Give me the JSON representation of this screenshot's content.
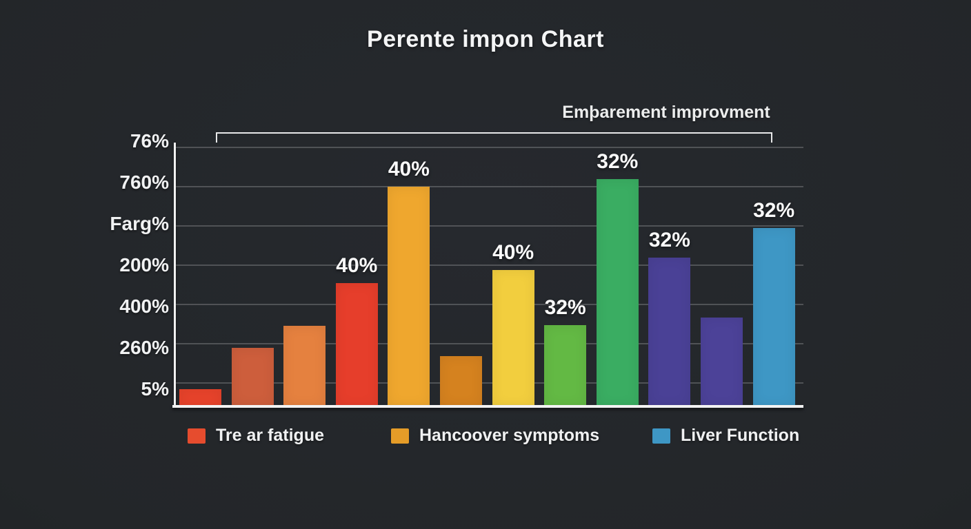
{
  "chart_data": {
    "type": "bar",
    "title": "Perente impon Chart",
    "annotation": "Emþarement improvment",
    "y_tick_labels": [
      "76%",
      "760%",
      "Farg%",
      "200%",
      "400%",
      "260%",
      "5%"
    ],
    "x_tick_labels": [],
    "grid": true,
    "legend_position": "bottom",
    "background_color": "#232629",
    "axis_color": "#f1f1f1",
    "bars": [
      {
        "height_pct": 6.6,
        "color": "#e8432b",
        "value_label": ""
      },
      {
        "height_pct": 22.4,
        "color": "#cd5e3c",
        "value_label": ""
      },
      {
        "height_pct": 30.8,
        "color": "#e5813f",
        "value_label": ""
      },
      {
        "height_pct": 47.1,
        "color": "#e63e2b",
        "value_label": "40%"
      },
      {
        "height_pct": 83.9,
        "color": "#efa72e",
        "value_label": "40%"
      },
      {
        "height_pct": 19.2,
        "color": "#d5821f",
        "value_label": ""
      },
      {
        "height_pct": 52.1,
        "color": "#f2ce3e",
        "value_label": "40%"
      },
      {
        "height_pct": 31.1,
        "color": "#63b944",
        "value_label": "32%"
      },
      {
        "height_pct": 86.8,
        "color": "#3aad62",
        "value_label": "32%"
      },
      {
        "height_pct": 56.8,
        "color": "#4a4196",
        "value_label": "32%"
      },
      {
        "height_pct": 33.9,
        "color": "#4c4298",
        "value_label": ""
      },
      {
        "height_pct": 68.2,
        "color": "#3e97c5",
        "value_label": "32%"
      }
    ],
    "legend": [
      {
        "label": "Tre ar fatigue",
        "color": "#e64c2e"
      },
      {
        "label": "Hancoover symptoms",
        "color": "#e59c28"
      },
      {
        "label": "Liver Function",
        "color": "#3e97c5"
      }
    ]
  }
}
